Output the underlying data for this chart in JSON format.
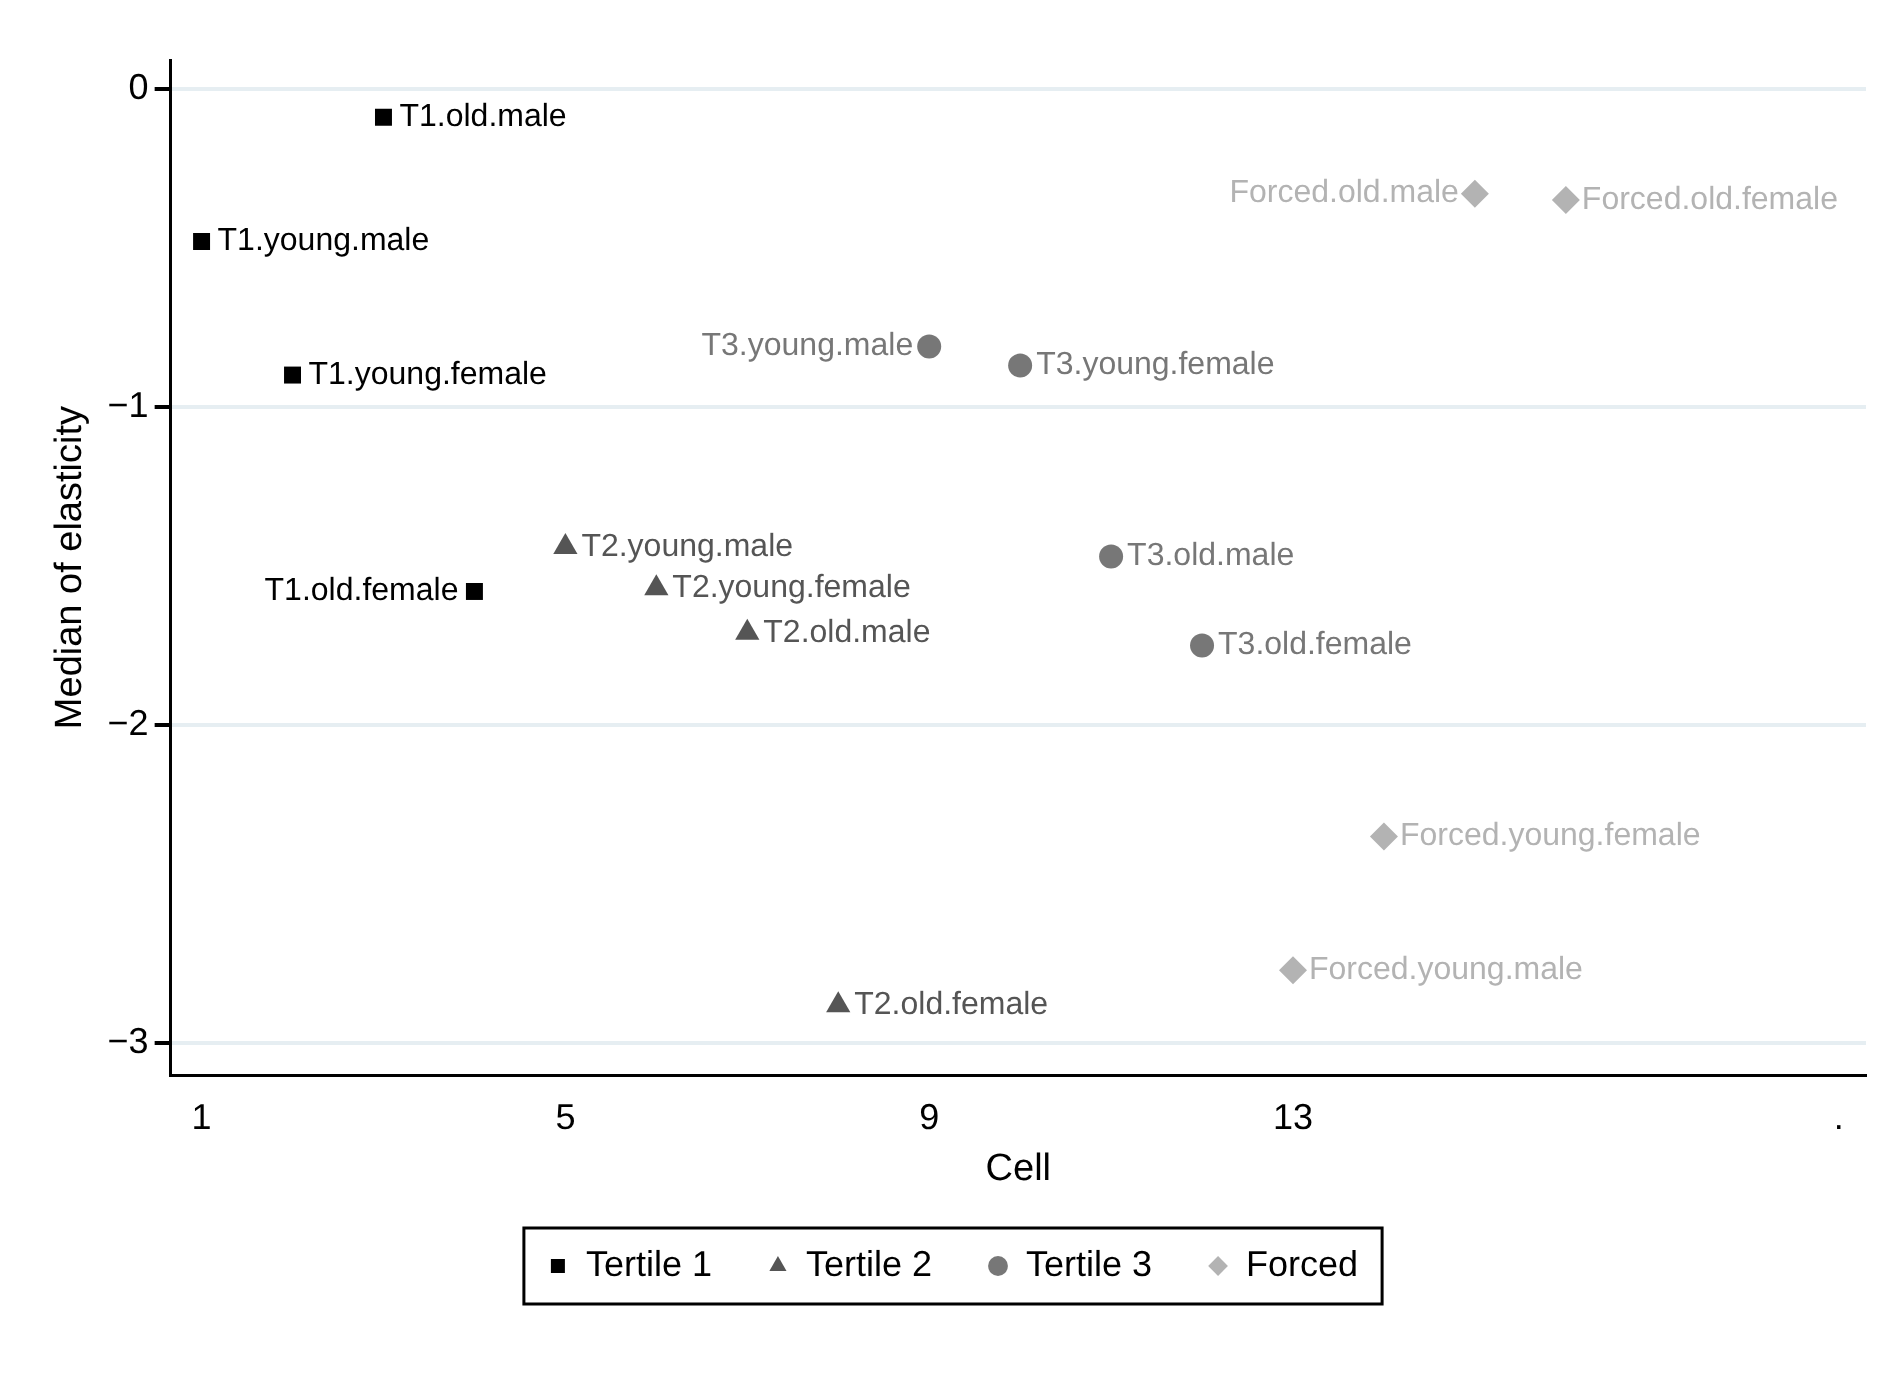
{
  "chart_data": {
    "type": "scatter",
    "xlabel": "Cell",
    "ylabel": "Median of elasticity",
    "xlim": [
      0.66,
      19.3
    ],
    "xticks": [
      1,
      5,
      9,
      13,
      {
        "value": 19,
        "label": "."
      }
    ],
    "ylim": [
      -3.1,
      0.09
    ],
    "yticks": [
      {
        "value": -3,
        "label": "−3"
      },
      {
        "value": -2,
        "label": "−2"
      },
      {
        "value": -1,
        "label": "−1"
      },
      0
    ],
    "grid": "y",
    "legend": "bottom",
    "series": [
      {
        "name": "Tertile 1",
        "color": "#000000",
        "marker": "square",
        "x": [
          1,
          2,
          3,
          4
        ],
        "values": [
          -0.48,
          -0.9,
          -0.09,
          -1.58
        ]
      },
      {
        "name": "Tertile 2",
        "color": "#555555",
        "marker": "triangle",
        "x": [
          5,
          6,
          7,
          8
        ],
        "values": [
          -1.44,
          -1.57,
          -1.71,
          -2.88
        ]
      },
      {
        "name": "Tertile 3",
        "color": "#777777",
        "marker": "circle",
        "x": [
          9,
          10,
          11,
          12
        ],
        "values": [
          -0.81,
          -0.87,
          -1.47,
          -1.75
        ]
      },
      {
        "name": "Forced",
        "color": "#b3b3b3",
        "marker": "diamond",
        "x": [
          13,
          14,
          15,
          16
        ],
        "values": [
          -2.77,
          -2.35,
          -0.33,
          -0.35
        ]
      }
    ],
    "annotations": [
      {
        "text": "T1.young.male",
        "x": 1,
        "y": -0.48
      },
      {
        "text": "T1.young.female",
        "x": 2,
        "y": -0.9
      },
      {
        "text": "T1.old.male",
        "x": 3,
        "y": -0.09
      },
      {
        "text": "T1.old.female",
        "x": 4,
        "y": -1.58
      },
      {
        "text": "T2.young.male",
        "x": 5,
        "y": -1.44
      },
      {
        "text": "T2.young.female",
        "x": 6,
        "y": -1.57
      },
      {
        "text": "T2.old.male",
        "x": 7,
        "y": -1.71
      },
      {
        "text": "T2.old.female",
        "x": 8,
        "y": -2.88
      },
      {
        "text": "T3.young.male",
        "x": 9,
        "y": -0.81
      },
      {
        "text": "T3.young.female",
        "x": 10,
        "y": -0.87
      },
      {
        "text": "T3.old.male",
        "x": 11,
        "y": -1.47
      },
      {
        "text": "T3.old.female",
        "x": 12,
        "y": -1.75
      },
      {
        "text": "Forced.young.male",
        "x": 13,
        "y": -2.77
      },
      {
        "text": "Forced.young.female",
        "x": 14,
        "y": -2.35
      },
      {
        "text": "Forced.old.male",
        "x": 15,
        "y": -0.33
      },
      {
        "text": "Forced.old.female",
        "x": 16,
        "y": -0.35
      }
    ]
  }
}
